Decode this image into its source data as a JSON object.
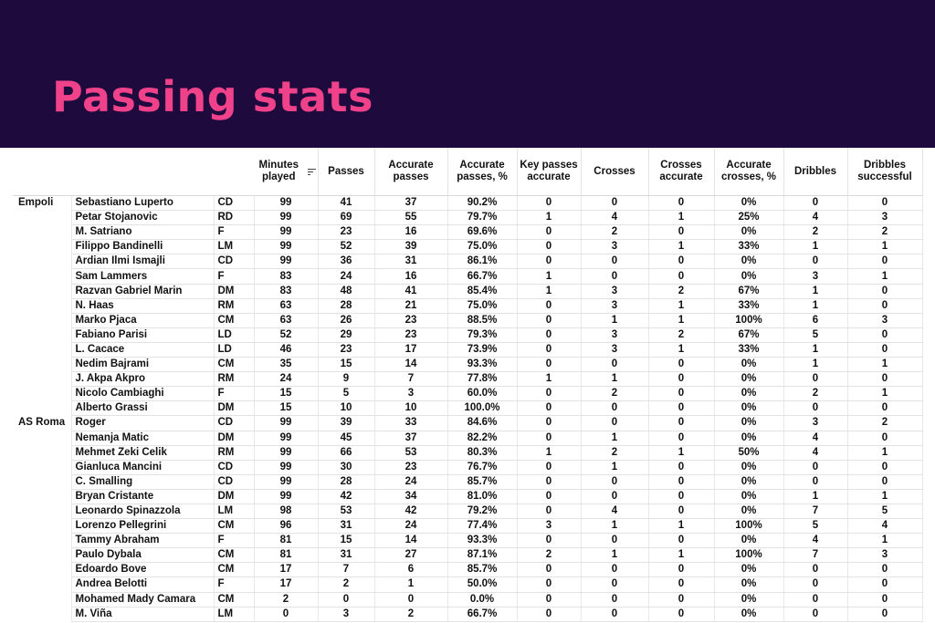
{
  "title": "Passing stats",
  "columns": [
    "Minutes played",
    "Passes",
    "Accurate passes",
    "Accurate passes, %",
    "Key passes accurate",
    "Crosses",
    "Crosses accurate",
    "Accurate crosses, %",
    "Dribbles",
    "Dribbles successful"
  ],
  "sort_icon": "sort-descending-icon",
  "colors": {
    "banner": "#1e0a3c",
    "title": "#f0428a"
  },
  "rows": [
    {
      "team": "Empoli",
      "player": "Sebastiano Luperto",
      "pos": "CD",
      "v": [
        "99",
        "41",
        "37",
        "90.2%",
        "0",
        "0",
        "0",
        "0%",
        "0",
        "0"
      ]
    },
    {
      "team": "",
      "player": "Petar Stojanovic",
      "pos": "RD",
      "v": [
        "99",
        "69",
        "55",
        "79.7%",
        "1",
        "4",
        "1",
        "25%",
        "4",
        "3"
      ]
    },
    {
      "team": "",
      "player": "M. Satriano",
      "pos": "F",
      "v": [
        "99",
        "23",
        "16",
        "69.6%",
        "0",
        "2",
        "0",
        "0%",
        "2",
        "2"
      ]
    },
    {
      "team": "",
      "player": "Filippo Bandinelli",
      "pos": "LM",
      "v": [
        "99",
        "52",
        "39",
        "75.0%",
        "0",
        "3",
        "1",
        "33%",
        "1",
        "1"
      ]
    },
    {
      "team": "",
      "player": "Ardian Ilmi Ismajli",
      "pos": "CD",
      "v": [
        "99",
        "36",
        "31",
        "86.1%",
        "0",
        "0",
        "0",
        "0%",
        "0",
        "0"
      ]
    },
    {
      "team": "",
      "player": "Sam Lammers",
      "pos": "F",
      "v": [
        "83",
        "24",
        "16",
        "66.7%",
        "1",
        "0",
        "0",
        "0%",
        "3",
        "1"
      ]
    },
    {
      "team": "",
      "player": "Razvan Gabriel Marin",
      "pos": "DM",
      "v": [
        "83",
        "48",
        "41",
        "85.4%",
        "1",
        "3",
        "2",
        "67%",
        "1",
        "0"
      ]
    },
    {
      "team": "",
      "player": "N. Haas",
      "pos": "RM",
      "v": [
        "63",
        "28",
        "21",
        "75.0%",
        "0",
        "3",
        "1",
        "33%",
        "1",
        "0"
      ]
    },
    {
      "team": "",
      "player": "Marko Pjaca",
      "pos": "CM",
      "v": [
        "63",
        "26",
        "23",
        "88.5%",
        "0",
        "1",
        "1",
        "100%",
        "6",
        "3"
      ]
    },
    {
      "team": "",
      "player": "Fabiano Parisi",
      "pos": "LD",
      "v": [
        "52",
        "29",
        "23",
        "79.3%",
        "0",
        "3",
        "2",
        "67%",
        "5",
        "0"
      ]
    },
    {
      "team": "",
      "player": "L. Cacace",
      "pos": "LD",
      "v": [
        "46",
        "23",
        "17",
        "73.9%",
        "0",
        "3",
        "1",
        "33%",
        "1",
        "0"
      ]
    },
    {
      "team": "",
      "player": "Nedim Bajrami",
      "pos": "CM",
      "v": [
        "35",
        "15",
        "14",
        "93.3%",
        "0",
        "0",
        "0",
        "0%",
        "1",
        "1"
      ]
    },
    {
      "team": "",
      "player": "J. Akpa Akpro",
      "pos": "RM",
      "v": [
        "24",
        "9",
        "7",
        "77.8%",
        "1",
        "1",
        "0",
        "0%",
        "0",
        "0"
      ]
    },
    {
      "team": "",
      "player": "Nicolo Cambiaghi",
      "pos": "F",
      "v": [
        "15",
        "5",
        "3",
        "60.0%",
        "0",
        "2",
        "0",
        "0%",
        "2",
        "1"
      ]
    },
    {
      "team": "",
      "player": "Alberto Grassi",
      "pos": "DM",
      "v": [
        "15",
        "10",
        "10",
        "100.0%",
        "0",
        "0",
        "0",
        "0%",
        "0",
        "0"
      ]
    },
    {
      "team": "AS Roma",
      "player": "Roger",
      "pos": "CD",
      "v": [
        "99",
        "39",
        "33",
        "84.6%",
        "0",
        "0",
        "0",
        "0%",
        "3",
        "2"
      ]
    },
    {
      "team": "",
      "player": "Nemanja Matic",
      "pos": "DM",
      "v": [
        "99",
        "45",
        "37",
        "82.2%",
        "0",
        "1",
        "0",
        "0%",
        "4",
        "0"
      ]
    },
    {
      "team": "",
      "player": "Mehmet Zeki Celik",
      "pos": "RM",
      "v": [
        "99",
        "66",
        "53",
        "80.3%",
        "1",
        "2",
        "1",
        "50%",
        "4",
        "1"
      ]
    },
    {
      "team": "",
      "player": "Gianluca Mancini",
      "pos": "CD",
      "v": [
        "99",
        "30",
        "23",
        "76.7%",
        "0",
        "1",
        "0",
        "0%",
        "0",
        "0"
      ]
    },
    {
      "team": "",
      "player": "C. Smalling",
      "pos": "CD",
      "v": [
        "99",
        "28",
        "24",
        "85.7%",
        "0",
        "0",
        "0",
        "0%",
        "0",
        "0"
      ]
    },
    {
      "team": "",
      "player": "Bryan Cristante",
      "pos": "DM",
      "v": [
        "99",
        "42",
        "34",
        "81.0%",
        "0",
        "0",
        "0",
        "0%",
        "1",
        "1"
      ]
    },
    {
      "team": "",
      "player": "Leonardo Spinazzola",
      "pos": "LM",
      "v": [
        "98",
        "53",
        "42",
        "79.2%",
        "0",
        "4",
        "0",
        "0%",
        "7",
        "5"
      ]
    },
    {
      "team": "",
      "player": "Lorenzo Pellegrini",
      "pos": "CM",
      "v": [
        "96",
        "31",
        "24",
        "77.4%",
        "3",
        "1",
        "1",
        "100%",
        "5",
        "4"
      ]
    },
    {
      "team": "",
      "player": "Tammy Abraham",
      "pos": "F",
      "v": [
        "81",
        "15",
        "14",
        "93.3%",
        "0",
        "0",
        "0",
        "0%",
        "4",
        "1"
      ]
    },
    {
      "team": "",
      "player": "Paulo Dybala",
      "pos": "CM",
      "v": [
        "81",
        "31",
        "27",
        "87.1%",
        "2",
        "1",
        "1",
        "100%",
        "7",
        "3"
      ]
    },
    {
      "team": "",
      "player": "Edoardo Bove",
      "pos": "CM",
      "v": [
        "17",
        "7",
        "6",
        "85.7%",
        "0",
        "0",
        "0",
        "0%",
        "0",
        "0"
      ]
    },
    {
      "team": "",
      "player": "Andrea Belotti",
      "pos": "F",
      "v": [
        "17",
        "2",
        "1",
        "50.0%",
        "0",
        "0",
        "0",
        "0%",
        "0",
        "0"
      ]
    },
    {
      "team": "",
      "player": "Mohamed Mady Camara",
      "pos": "CM",
      "v": [
        "2",
        "0",
        "0",
        "0.0%",
        "0",
        "0",
        "0",
        "0%",
        "0",
        "0"
      ]
    },
    {
      "team": "",
      "player": "M. Viña",
      "pos": "LM",
      "v": [
        "0",
        "3",
        "2",
        "66.7%",
        "0",
        "0",
        "0",
        "0%",
        "0",
        "0"
      ]
    }
  ]
}
